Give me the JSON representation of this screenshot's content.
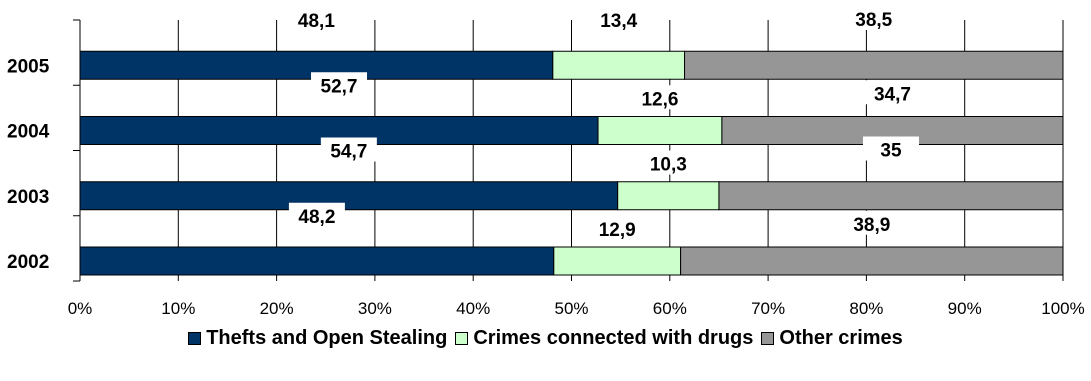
{
  "chart_data": {
    "type": "bar",
    "orientation": "horizontal",
    "stacked": true,
    "categories": [
      "2005",
      "2004",
      "2003",
      "2002"
    ],
    "series": [
      {
        "name": "Thefts and Open Stealing",
        "color": "#003366",
        "values": [
          48.1,
          52.7,
          54.7,
          48.2
        ]
      },
      {
        "name": "Crimes connected with drugs",
        "color": "#ccffcc",
        "values": [
          13.4,
          12.6,
          10.3,
          12.9
        ]
      },
      {
        "name": "Other crimes",
        "color": "#969696",
        "values": [
          38.5,
          34.7,
          35,
          38.9
        ]
      }
    ],
    "data_labels": [
      [
        "48,1",
        "52,7",
        "54,7",
        "48,2"
      ],
      [
        "13,4",
        "12,6",
        "10,3",
        "12,9"
      ],
      [
        "38,5",
        "34,7",
        "35",
        "38,9"
      ]
    ],
    "x_ticks": [
      "0%",
      "10%",
      "20%",
      "30%",
      "40%",
      "50%",
      "60%",
      "70%",
      "80%",
      "90%",
      "100%"
    ],
    "xlim": [
      0,
      100
    ],
    "grid": true,
    "legend": "bottom"
  }
}
